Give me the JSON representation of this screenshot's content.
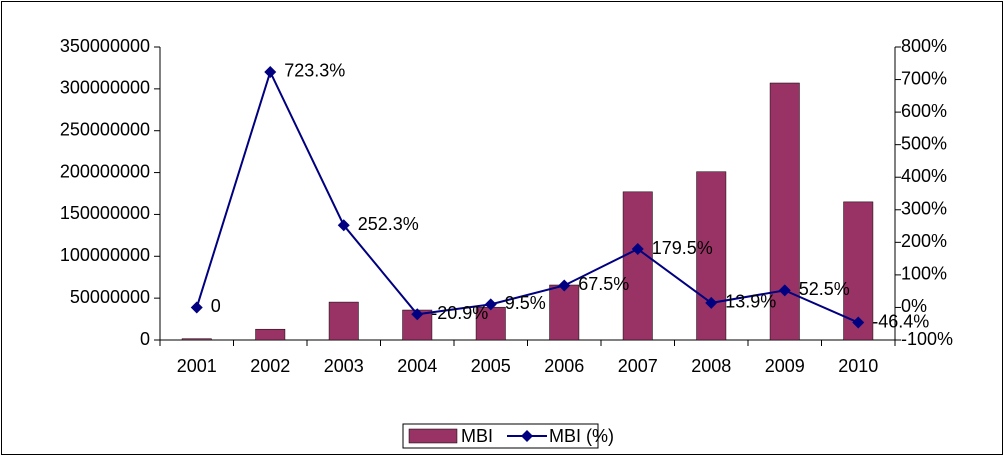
{
  "chart_data": {
    "type": "bar_line",
    "categories": [
      "2001",
      "2002",
      "2003",
      "2004",
      "2005",
      "2006",
      "2007",
      "2008",
      "2009",
      "2010"
    ],
    "series": [
      {
        "name": "MBI",
        "type": "bar",
        "color": "#993366",
        "values": [
          1560000,
          12900000,
          45300000,
          35800000,
          39200000,
          65700000,
          177000000,
          201000000,
          307000000,
          165000000
        ]
      },
      {
        "name": "MBI (%)",
        "type": "line",
        "axis": "y2",
        "color": "#000080",
        "values": [
          0,
          723.3,
          252.3,
          -20.9,
          9.5,
          67.5,
          179.5,
          13.9,
          52.5,
          -46.4
        ],
        "value_labels": [
          "0",
          "723.3%",
          "252.3%",
          "-20.9%",
          "9.5%",
          "67.5%",
          "179.5%",
          "13.9%",
          "52.5%",
          "-46.4%"
        ]
      }
    ],
    "ylim": [
      0,
      350000000
    ],
    "yticks": [
      0,
      50000000,
      100000000,
      150000000,
      200000000,
      250000000,
      300000000,
      350000000
    ],
    "y2lim": [
      -100,
      800
    ],
    "y2ticks": [
      {
        "value": -100,
        "label": "-100%"
      },
      {
        "value": 0,
        "label": "0%"
      },
      {
        "value": 100,
        "label": "100%"
      },
      {
        "value": 200,
        "label": "200%"
      },
      {
        "value": 300,
        "label": "300%"
      },
      {
        "value": 400,
        "label": "400%"
      },
      {
        "value": 500,
        "label": "500%"
      },
      {
        "value": 600,
        "label": "600%"
      },
      {
        "value": 700,
        "label": "700%"
      },
      {
        "value": 800,
        "label": "800%"
      }
    ],
    "legend": "bottom"
  }
}
